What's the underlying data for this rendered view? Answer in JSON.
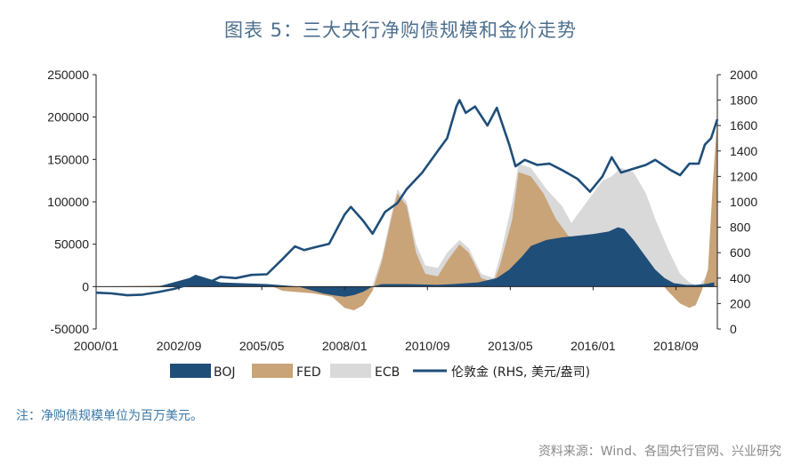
{
  "title": "图表 5：三大央行净购债规模和金价走势",
  "footnote": "注：净购债规模单位为百万美元。",
  "source": "资料来源：Wind、各国央行官网、兴业研究",
  "colors": {
    "boj": "#1f4e79",
    "fed": "#c9a478",
    "ecb": "#d9d9d9",
    "gold": "#1f4e79",
    "title": "#4d6f8e",
    "footnote": "#3a78a6"
  },
  "chart_data": {
    "type": "area",
    "x_tick_labels": [
      "2000/01",
      "2002/09",
      "2005/05",
      "2008/01",
      "2010/09",
      "2013/05",
      "2016/01",
      "2018/09"
    ],
    "left_axis": {
      "ticks": [
        250000,
        200000,
        150000,
        100000,
        50000,
        0,
        -50000
      ],
      "ylim": [
        -50000,
        250000
      ]
    },
    "right_axis": {
      "ticks": [
        2000,
        1800,
        1600,
        1400,
        1200,
        1000,
        800,
        600,
        400,
        200,
        0
      ],
      "ylim": [
        0,
        2000
      ]
    },
    "legend": [
      "BOJ",
      "FED",
      "ECB",
      "伦敦金 (RHS, 美元/盎司)"
    ],
    "series": [
      {
        "name": "BOJ",
        "x": [
          2000.0,
          2002.0,
          2003.0,
          2003.2,
          2004.0,
          2005.5,
          2006.5,
          2006.9,
          2007.3,
          2007.6,
          2008.0,
          2008.3,
          2008.6,
          2008.9,
          2009.2,
          2010.0,
          2011.0,
          2011.5,
          2012.3,
          2012.9,
          2013.3,
          2013.7,
          2014.0,
          2014.5,
          2015.0,
          2015.5,
          2016.0,
          2016.5,
          2016.8,
          2017.0,
          2017.3,
          2017.7,
          2018.0,
          2018.3,
          2018.6,
          2019.0,
          2019.3,
          2019.6,
          2019.9
        ],
        "values": [
          0,
          0,
          10000,
          14000,
          5000,
          3000,
          0,
          -4000,
          -8000,
          -10000,
          -12000,
          -10000,
          -6000,
          0,
          3000,
          3000,
          2000,
          3000,
          5000,
          10000,
          20000,
          35000,
          48000,
          55000,
          58000,
          60000,
          62000,
          65000,
          70000,
          68000,
          55000,
          35000,
          20000,
          10000,
          4000,
          2000,
          2000,
          3000,
          5000
        ]
      },
      {
        "name": "FED",
        "x": [
          2000.0,
          2005.5,
          2006.0,
          2007.0,
          2007.6,
          2008.0,
          2008.3,
          2008.6,
          2008.9,
          2009.2,
          2009.5,
          2009.7,
          2010.0,
          2010.3,
          2010.6,
          2011.0,
          2011.3,
          2011.7,
          2012.0,
          2012.4,
          2012.8,
          2013.0,
          2013.4,
          2013.6,
          2014.0,
          2014.4,
          2014.8,
          2015.2,
          2016.0,
          2017.0,
          2017.6,
          2018.0,
          2018.4,
          2018.8,
          2019.1,
          2019.3,
          2019.5,
          2019.7,
          2019.85,
          2020.0
        ],
        "values": [
          0,
          3000,
          -5000,
          -8000,
          -12000,
          -25000,
          -28000,
          -22000,
          -5000,
          30000,
          80000,
          110000,
          95000,
          40000,
          15000,
          12000,
          30000,
          50000,
          40000,
          10000,
          5000,
          25000,
          80000,
          135000,
          130000,
          110000,
          80000,
          60000,
          50000,
          30000,
          20000,
          12000,
          -5000,
          -20000,
          -25000,
          -22000,
          -5000,
          20000,
          120000,
          200000
        ]
      },
      {
        "name": "ECB",
        "x": [
          2000.0,
          2005.5,
          2006.5,
          2007.5,
          2008.0,
          2008.4,
          2008.8,
          2009.2,
          2009.5,
          2009.7,
          2010.0,
          2010.3,
          2010.6,
          2011.0,
          2011.3,
          2011.7,
          2012.0,
          2012.4,
          2012.8,
          2013.0,
          2013.4,
          2013.6,
          2014.0,
          2014.5,
          2015.0,
          2015.3,
          2015.8,
          2016.3,
          2016.6,
          2016.9,
          2017.3,
          2017.7,
          2018.0,
          2018.4,
          2018.8,
          2019.1,
          2019.4,
          2019.6,
          2019.8,
          2020.0
        ],
        "values": [
          0,
          2000,
          0,
          -5000,
          -15000,
          -18000,
          -10000,
          35000,
          85000,
          115000,
          100000,
          50000,
          25000,
          22000,
          40000,
          55000,
          45000,
          15000,
          10000,
          35000,
          100000,
          145000,
          140000,
          115000,
          95000,
          75000,
          100000,
          125000,
          130000,
          140000,
          135000,
          110000,
          80000,
          45000,
          15000,
          5000,
          0,
          10000,
          30000,
          60000
        ]
      },
      {
        "name": "伦敦金 (RHS, 美元/盎司)",
        "axis": "right",
        "x": [
          2000.0,
          2000.5,
          2001.0,
          2001.5,
          2002.0,
          2002.5,
          2003.0,
          2003.5,
          2004.0,
          2004.5,
          2005.0,
          2005.5,
          2006.0,
          2006.4,
          2006.7,
          2007.0,
          2007.5,
          2008.0,
          2008.2,
          2008.6,
          2008.9,
          2009.3,
          2009.7,
          2010.0,
          2010.5,
          2011.0,
          2011.3,
          2011.6,
          2011.7,
          2011.9,
          2012.2,
          2012.6,
          2012.9,
          2013.3,
          2013.5,
          2013.8,
          2014.2,
          2014.6,
          2015.0,
          2015.5,
          2015.9,
          2016.3,
          2016.6,
          2016.9,
          2017.3,
          2017.7,
          2018.0,
          2018.5,
          2018.8,
          2019.1,
          2019.4,
          2019.6,
          2019.8,
          2020.0
        ],
        "values": [
          285,
          280,
          265,
          270,
          290,
          315,
          350,
          350,
          410,
          400,
          425,
          430,
          550,
          650,
          620,
          640,
          670,
          900,
          960,
          850,
          750,
          920,
          990,
          1100,
          1230,
          1400,
          1500,
          1750,
          1800,
          1700,
          1750,
          1600,
          1740,
          1450,
          1280,
          1330,
          1290,
          1300,
          1250,
          1180,
          1080,
          1200,
          1350,
          1230,
          1260,
          1290,
          1330,
          1250,
          1210,
          1300,
          1300,
          1450,
          1500,
          1650
        ]
      }
    ]
  }
}
